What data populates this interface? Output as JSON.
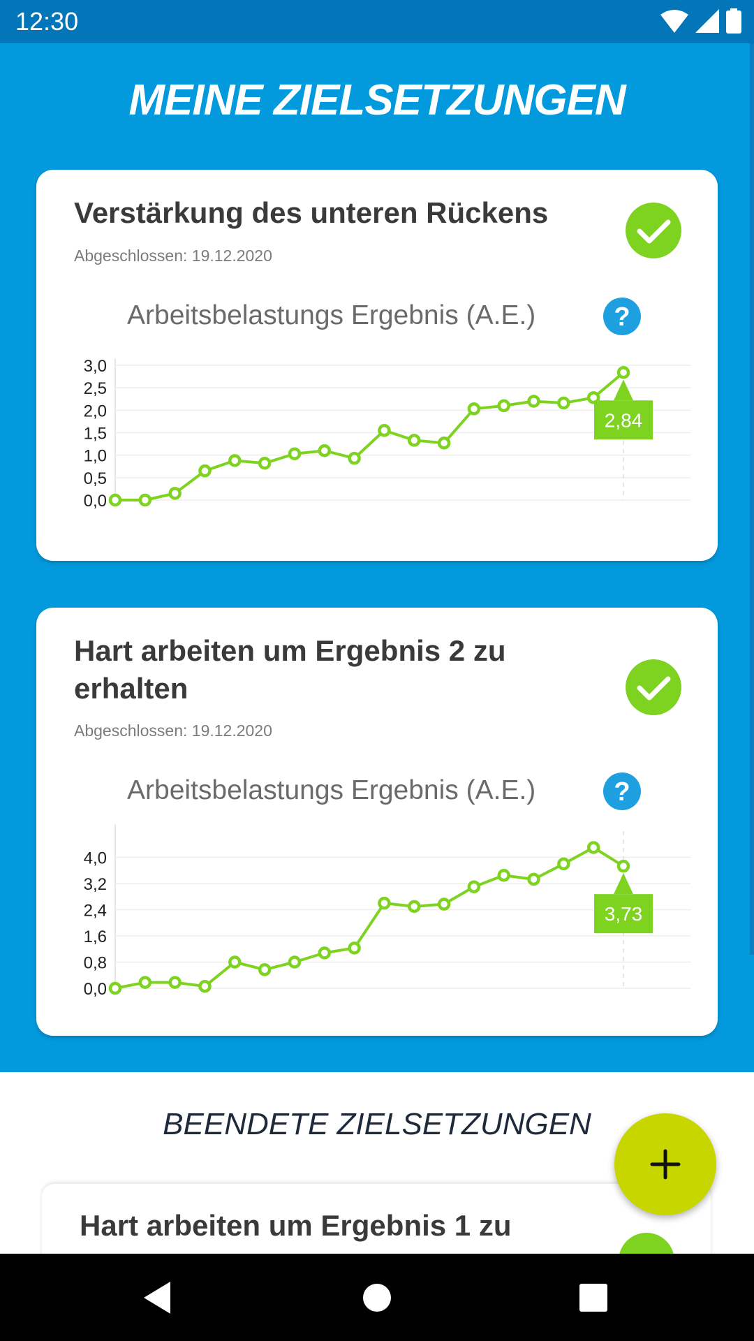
{
  "status_bar": {
    "time": "12:30"
  },
  "page": {
    "title": "MEINE ZIELSETZUNGEN"
  },
  "cards": [
    {
      "title": "Verstärkung des unteren Rückens",
      "date": "Abgeschlossen: 19.12.2020",
      "chart_title": "Arbeitsbelastungs Ergebnis (A.E.)",
      "last_label": "2,84"
    },
    {
      "title": "Hart arbeiten um Ergebnis 2 zu erhalten",
      "date": "Abgeschlossen: 19.12.2020",
      "chart_title": "Arbeitsbelastungs Ergebnis (A.E.)",
      "last_label": "3,73"
    }
  ],
  "lower": {
    "section_title": "BEENDETE ZIELSETZUNGEN",
    "peek_card_title": "Hart arbeiten um Ergebnis 1 zu"
  },
  "colors": {
    "primary": "#0399dd",
    "status_bar": "#0276b8",
    "line": "#7ed321",
    "fab": "#c8d600",
    "help": "#1ea0e0"
  },
  "chart_data": [
    {
      "type": "line",
      "title": "Arbeitsbelastungs Ergebnis (A.E.)",
      "x": [
        1,
        2,
        3,
        4,
        5,
        6,
        7,
        8,
        9,
        10,
        11,
        12,
        13,
        14,
        15,
        16,
        17,
        18
      ],
      "values": [
        0.0,
        0.0,
        0.15,
        0.65,
        0.88,
        0.82,
        1.03,
        1.1,
        0.93,
        1.55,
        1.33,
        1.27,
        2.03,
        2.1,
        2.2,
        2.16,
        2.28,
        2.84
      ],
      "ylim": [
        0,
        3.0
      ],
      "yticks": [
        "0,0",
        "0,5",
        "1,0",
        "1,5",
        "2,0",
        "2,5",
        "3,0"
      ],
      "ytick_values": [
        0,
        0.5,
        1.0,
        1.5,
        2.0,
        2.5,
        3.0
      ],
      "last_value_label": "2,84",
      "grid": true
    },
    {
      "type": "line",
      "title": "Arbeitsbelastungs Ergebnis (A.E.)",
      "x": [
        1,
        2,
        3,
        4,
        5,
        6,
        7,
        8,
        9,
        10,
        11,
        12,
        13,
        14,
        15,
        16,
        17,
        18
      ],
      "values": [
        0.0,
        0.18,
        0.18,
        0.06,
        0.8,
        0.57,
        0.8,
        1.08,
        1.23,
        2.6,
        2.5,
        2.57,
        3.1,
        3.45,
        3.33,
        3.8,
        4.3,
        3.73
      ],
      "ylim": [
        0,
        4.8
      ],
      "yticks": [
        "0,0",
        "0,8",
        "1,6",
        "2,4",
        "3,2",
        "4,0"
      ],
      "ytick_values": [
        0,
        0.8,
        1.6,
        2.4,
        3.2,
        4.0
      ],
      "last_value_label": "3,73",
      "grid": true
    }
  ]
}
